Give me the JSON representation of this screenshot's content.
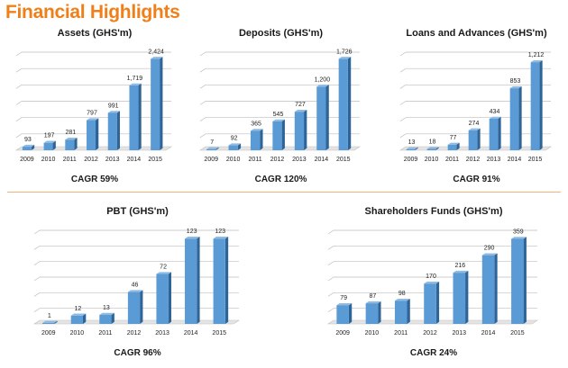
{
  "header": {
    "title": "Financial Highlights"
  },
  "colors": {
    "title": "#f07f1a",
    "bar_front": "#5b9bd5",
    "bar_side": "#2e6497",
    "bar_top": "#8fbbe3",
    "divider": "#f4b183"
  },
  "chart_data": [
    {
      "type": "bar",
      "title": "Assets (GHS'm)",
      "caption": "CAGR 59%",
      "categories": [
        "2009",
        "2010",
        "2011",
        "2012",
        "2013",
        "2014",
        "2015"
      ],
      "values": [
        93,
        197,
        281,
        797,
        991,
        1719,
        2424
      ],
      "value_labels": [
        "93",
        "197",
        "281",
        "797",
        "991",
        "1,719",
        "2,424"
      ],
      "ylim": [
        0,
        2600
      ],
      "grid": true
    },
    {
      "type": "bar",
      "title": "Deposits (GHS'm)",
      "caption": "CAGR 120%",
      "categories": [
        "2009",
        "2010",
        "2011",
        "2012",
        "2013",
        "2014",
        "2015"
      ],
      "values": [
        7,
        92,
        365,
        545,
        727,
        1200,
        1726
      ],
      "value_labels": [
        "7",
        "92",
        "365",
        "545",
        "727",
        "1,200",
        "1,726"
      ],
      "ylim": [
        0,
        1850
      ],
      "grid": true
    },
    {
      "type": "bar",
      "title": "Loans and Advances (GHS'm)",
      "caption": "CAGR 91%",
      "categories": [
        "2009",
        "2010",
        "2011",
        "2012",
        "2013",
        "2014",
        "2015"
      ],
      "values": [
        13,
        18,
        77,
        274,
        434,
        853,
        1212
      ],
      "value_labels": [
        "13",
        "18",
        "77",
        "274",
        "434",
        "853",
        "1,212"
      ],
      "ylim": [
        0,
        1350
      ],
      "grid": true
    },
    {
      "type": "bar",
      "title": "PBT (GHS'm)",
      "caption": "CAGR 96%",
      "categories": [
        "2009",
        "2010",
        "2011",
        "2012",
        "2013",
        "2014",
        "2015"
      ],
      "values": [
        1,
        12,
        13,
        46,
        72,
        123,
        123
      ],
      "value_labels": [
        "1",
        "12",
        "13",
        "46",
        "72",
        "123",
        "123"
      ],
      "ylim": [
        0,
        135
      ],
      "grid": true
    },
    {
      "type": "bar",
      "title": "Shareholders Funds (GHS'm)",
      "caption": "CAGR 24%",
      "categories": [
        "2009",
        "2010",
        "2011",
        "2012",
        "2013",
        "2014",
        "2015"
      ],
      "values": [
        79,
        87,
        98,
        170,
        216,
        290,
        359
      ],
      "value_labels": [
        "79",
        "87",
        "98",
        "170",
        "216",
        "290",
        "359"
      ],
      "ylim": [
        0,
        395
      ],
      "grid": true
    }
  ]
}
